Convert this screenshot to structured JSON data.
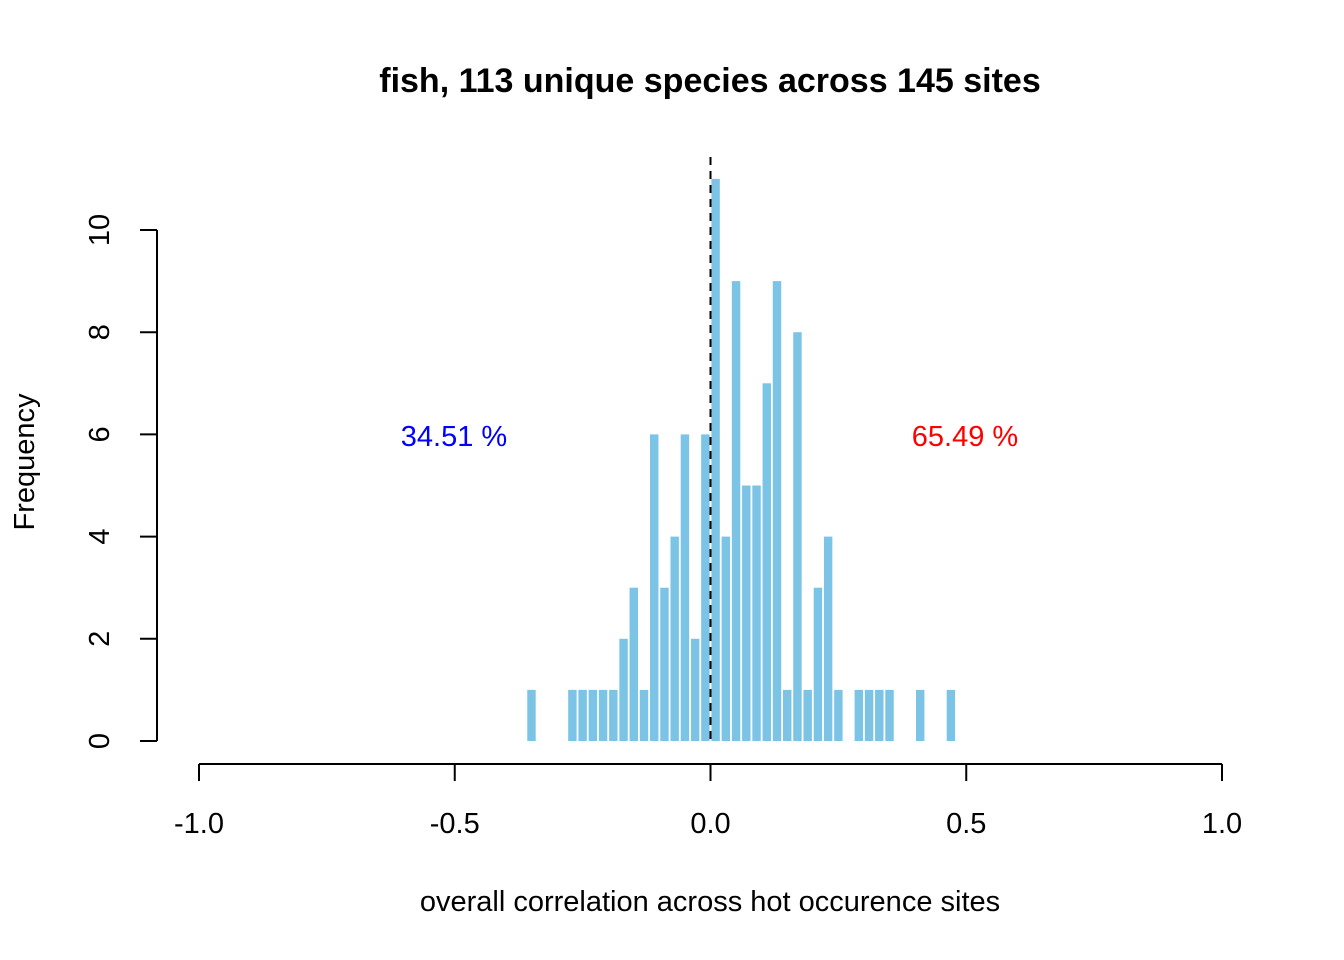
{
  "chart_data": {
    "type": "bar",
    "title": "fish, 113 unique species across 145 sites",
    "xlabel": "overall correlation across hot occurence sites",
    "ylabel": "Frequency",
    "xlim": [
      -1.0,
      1.0
    ],
    "ylim": [
      0,
      11
    ],
    "x_ticks": [
      "-1.0",
      "-0.5",
      "0.0",
      "0.5",
      "1.0"
    ],
    "y_ticks": [
      "0",
      "2",
      "4",
      "6",
      "8",
      "10"
    ],
    "bin_width": 0.02,
    "bars": [
      {
        "x": -0.35,
        "y": 1
      },
      {
        "x": -0.27,
        "y": 1
      },
      {
        "x": -0.25,
        "y": 1
      },
      {
        "x": -0.23,
        "y": 1
      },
      {
        "x": -0.21,
        "y": 1
      },
      {
        "x": -0.19,
        "y": 1
      },
      {
        "x": -0.17,
        "y": 2
      },
      {
        "x": -0.15,
        "y": 3
      },
      {
        "x": -0.13,
        "y": 1
      },
      {
        "x": -0.11,
        "y": 6
      },
      {
        "x": -0.09,
        "y": 3
      },
      {
        "x": -0.07,
        "y": 4
      },
      {
        "x": -0.05,
        "y": 6
      },
      {
        "x": -0.03,
        "y": 2
      },
      {
        "x": -0.01,
        "y": 6
      },
      {
        "x": 0.01,
        "y": 11
      },
      {
        "x": 0.03,
        "y": 4
      },
      {
        "x": 0.05,
        "y": 9
      },
      {
        "x": 0.07,
        "y": 5
      },
      {
        "x": 0.09,
        "y": 5
      },
      {
        "x": 0.11,
        "y": 7
      },
      {
        "x": 0.13,
        "y": 9
      },
      {
        "x": 0.15,
        "y": 1
      },
      {
        "x": 0.17,
        "y": 8
      },
      {
        "x": 0.19,
        "y": 1
      },
      {
        "x": 0.21,
        "y": 3
      },
      {
        "x": 0.23,
        "y": 4
      },
      {
        "x": 0.25,
        "y": 1
      },
      {
        "x": 0.29,
        "y": 1
      },
      {
        "x": 0.31,
        "y": 1
      },
      {
        "x": 0.33,
        "y": 1
      },
      {
        "x": 0.35,
        "y": 1
      },
      {
        "x": 0.41,
        "y": 1
      },
      {
        "x": 0.47,
        "y": 1
      }
    ],
    "reference_line_x": 0.0,
    "annotations": {
      "negative_pct": "34.51 %",
      "positive_pct": "65.49 %"
    },
    "colors": {
      "bar": "#7bc4e6",
      "negative_pct": "#0000ff",
      "positive_pct": "#ff0000"
    },
    "grid": false,
    "legend": "none"
  }
}
